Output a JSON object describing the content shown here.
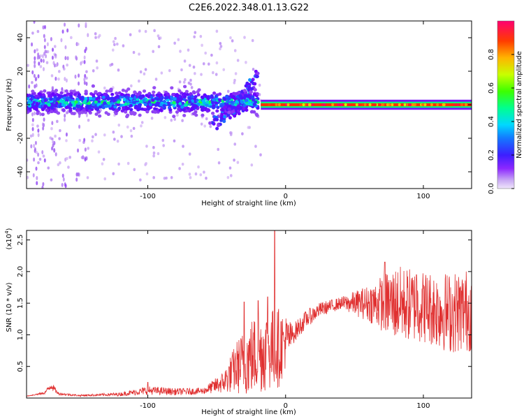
{
  "title": "C2E6.2022.348.01.13.G22",
  "chart_data": [
    {
      "type": "heatmap",
      "title": "C2E6.2022.348.01.13.G22",
      "xlabel": "Height of straight line (km)",
      "ylabel": "Frequency (Hz)",
      "xlim": [
        -188,
        135
      ],
      "ylim": [
        -50,
        50
      ],
      "xticks": [
        -100,
        0,
        100
      ],
      "yticks": [
        -40,
        -20,
        0,
        20,
        40
      ],
      "xtick_labels": [
        "-100",
        "0",
        "100"
      ],
      "ytick_labels": [
        "-40",
        "-20",
        "0",
        "20",
        "40"
      ],
      "colorbar": {
        "label": "Normalized spectral amplitude",
        "range": [
          0,
          1
        ],
        "ticks": [
          0.0,
          0.2,
          0.4,
          0.6,
          0.8
        ],
        "tick_labels": [
          "0.0",
          "0.2",
          "0.4",
          "0.6",
          "0.8"
        ],
        "colormap": [
          "#e8d8f8",
          "#a060f0",
          "#6a00ff",
          "#3030ff",
          "#00c8ff",
          "#00ff80",
          "#40ff00",
          "#c8ff00",
          "#ffb000",
          "#ff3000",
          "#ff0070"
        ]
      },
      "band_segments": [
        {
          "x_start": -188,
          "x_end": -20,
          "center_hz": 1.5,
          "halfwidth_hz": 6,
          "amplitude": 0.3,
          "noise": "high"
        },
        {
          "x_start": -18,
          "x_end": 135,
          "center_hz": 0,
          "halfwidth_hz": 3,
          "amplitude": 0.9,
          "noise": "low"
        }
      ],
      "branches": [
        {
          "x": [
            -50,
            -20
          ],
          "y": [
            -14,
            19
          ]
        },
        {
          "x": [
            -55,
            -22
          ],
          "y": [
            -12,
            10
          ]
        },
        {
          "x": [
            -45,
            -22
          ],
          "y": [
            -8,
            4
          ]
        }
      ]
    },
    {
      "type": "line",
      "xlabel": "Height of straight line (km)",
      "ylabel": "SNR (10 * v/v)",
      "y_multiplier": "(x10",
      "y_multiplier_exp": "4",
      "y_multiplier_close": ")",
      "xlim": [
        -188,
        135
      ],
      "ylim": [
        0,
        26500
      ],
      "xticks": [
        -100,
        0,
        100
      ],
      "yticks": [
        5000,
        10000,
        15000,
        20000,
        25000
      ],
      "xtick_labels": [
        "-100",
        "0",
        "100"
      ],
      "ytick_labels": [
        "0.5",
        "1.0",
        "1.5",
        "2.0",
        "2.5"
      ],
      "color": "#e03030",
      "envelope": {
        "x": [
          -188,
          -175,
          -170,
          -165,
          -150,
          -120,
          -100,
          -80,
          -60,
          -45,
          -35,
          -25,
          -15,
          -5,
          5,
          15,
          25,
          40,
          60,
          80,
          100,
          120,
          135
        ],
        "y": [
          300,
          800,
          2000,
          700,
          400,
          600,
          1200,
          1000,
          1100,
          2500,
          5000,
          6500,
          7500,
          8000,
          10000,
          12500,
          14000,
          15000,
          15000,
          15000,
          14500,
          13500,
          14000
        ]
      },
      "noise_fraction": [
        0.1,
        0.15,
        0.2,
        0.2,
        0.2,
        0.3,
        0.35,
        0.35,
        0.3,
        0.45,
        0.55,
        0.6,
        0.55,
        0.5,
        0.1,
        0.07,
        0.05,
        0.04,
        0.12,
        0.25,
        0.25,
        0.3,
        0.3
      ],
      "spikes": [
        {
          "x": -100,
          "y": 2500
        },
        {
          "x": -30,
          "y": 15200
        },
        {
          "x": -20,
          "y": 15400
        },
        {
          "x": -13,
          "y": 16000
        },
        {
          "x": -8,
          "y": 26500
        },
        {
          "x": 72,
          "y": 21500
        },
        {
          "x": 95,
          "y": 19500
        }
      ]
    }
  ]
}
